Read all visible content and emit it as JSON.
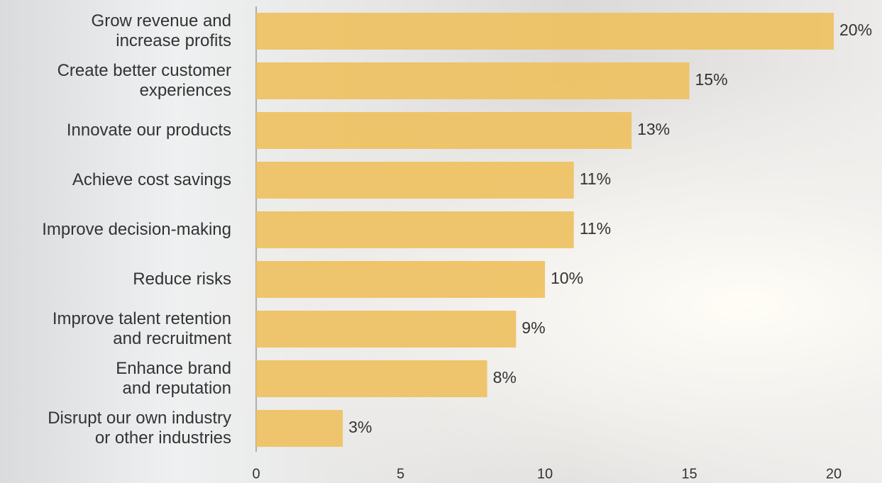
{
  "chart_data": {
    "type": "barh",
    "categories": [
      "Grow revenue and\nincrease profits",
      "Create better customer\nexperiences",
      "Innovate our products",
      "Achieve cost savings",
      "Improve decision-making",
      "Reduce risks",
      "Improve talent retention\nand recruitment",
      "Enhance brand\nand reputation",
      "Disrupt our own industry\nor other industries"
    ],
    "values": [
      20,
      15,
      13,
      11,
      11,
      10,
      9,
      8,
      3
    ],
    "value_labels": [
      "20%",
      "15%",
      "13%",
      "11%",
      "11%",
      "10%",
      "9%",
      "8%",
      "3%"
    ],
    "color": "#eec161",
    "xlim": [
      0,
      20
    ],
    "xticks": [
      0,
      5,
      10,
      15,
      20
    ],
    "grid": false
  }
}
